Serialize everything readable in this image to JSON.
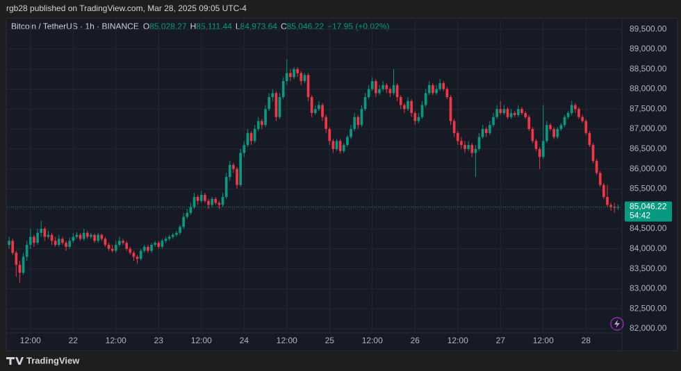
{
  "chart_data": {
    "type": "candlestick",
    "published": "rgb28 published on TradingView.com, Mar 28, 2025 09:05 UTC-4",
    "title": "Bitcoin / TetherUS · 1h · BINANCE",
    "legend": [
      {
        "key": "O",
        "value": "85,028.27"
      },
      {
        "key": "H",
        "value": "85,111.44"
      },
      {
        "key": "L",
        "value": "84,973.64"
      },
      {
        "key": "C",
        "value": "85,046.22"
      }
    ],
    "change": "+17.95 (+0.02%)",
    "last_price_label": "85,046.22",
    "countdown": "54:42",
    "brand": "TradingView",
    "up_color": "#089981",
    "down_color": "#f23645",
    "grid": true,
    "xlim": [
      -0.6,
      172.1
    ],
    "ylim": [
      81895,
      89745
    ],
    "xticks": [
      {
        "value": 6,
        "label": "12:00"
      },
      {
        "value": 18,
        "label": "22"
      },
      {
        "value": 30,
        "label": "12:00"
      },
      {
        "value": 42,
        "label": "23"
      },
      {
        "value": 54,
        "label": "12:00"
      },
      {
        "value": 66,
        "label": "24"
      },
      {
        "value": 78,
        "label": "12:00"
      },
      {
        "value": 90,
        "label": "25"
      },
      {
        "value": 102,
        "label": "12:00"
      },
      {
        "value": 114,
        "label": "26"
      },
      {
        "value": 126,
        "label": "12:00"
      },
      {
        "value": 138,
        "label": "27"
      },
      {
        "value": 150,
        "label": "12:00"
      },
      {
        "value": 162,
        "label": "28"
      }
    ],
    "yticks": [
      {
        "value": 82000,
        "label": "82,000.00"
      },
      {
        "value": 82500,
        "label": "82,500.00"
      },
      {
        "value": 83000,
        "label": "83,000.00"
      },
      {
        "value": 83500,
        "label": "83,500.00"
      },
      {
        "value": 84000,
        "label": "84,000.00"
      },
      {
        "value": 84500,
        "label": "84,500.00"
      },
      {
        "value": 85000,
        "label": "85,000.00"
      },
      {
        "value": 85500,
        "label": "85,500.00"
      },
      {
        "value": 86000,
        "label": "86,000.00"
      },
      {
        "value": 86500,
        "label": "86,500.00"
      },
      {
        "value": 87000,
        "label": "87,000.00"
      },
      {
        "value": 87500,
        "label": "87,500.00"
      },
      {
        "value": 88000,
        "label": "88,000.00"
      },
      {
        "value": 88500,
        "label": "88,500.00"
      },
      {
        "value": 89000,
        "label": "89,000.00"
      },
      {
        "value": 89500,
        "label": "89,500.00"
      }
    ],
    "ohlc": [
      [
        84100,
        84300,
        84000,
        84200
      ],
      [
        84200,
        84250,
        83850,
        83900
      ],
      [
        83900,
        83950,
        83300,
        83600
      ],
      [
        83600,
        83700,
        83150,
        83400
      ],
      [
        83400,
        83900,
        83350,
        83800
      ],
      [
        83800,
        84200,
        83700,
        84100
      ],
      [
        84100,
        84500,
        84000,
        84300
      ],
      [
        84300,
        84350,
        84050,
        84150
      ],
      [
        84150,
        84500,
        84100,
        84400
      ],
      [
        84400,
        84700,
        84300,
        84500
      ],
      [
        84500,
        84550,
        84200,
        84300
      ],
      [
        84300,
        84450,
        84250,
        84350
      ],
      [
        84350,
        84400,
        84100,
        84200
      ],
      [
        84200,
        84300,
        84050,
        84100
      ],
      [
        84100,
        84350,
        84050,
        84250
      ],
      [
        84250,
        84300,
        84100,
        84150
      ],
      [
        84150,
        84200,
        83950,
        84050
      ],
      [
        84050,
        84280,
        84000,
        84200
      ],
      [
        84200,
        84400,
        84150,
        84300
      ],
      [
        84300,
        84420,
        84250,
        84350
      ],
      [
        84350,
        84400,
        84200,
        84250
      ],
      [
        84250,
        84500,
        84200,
        84400
      ],
      [
        84400,
        84450,
        84250,
        84300
      ],
      [
        84300,
        84400,
        84250,
        84350
      ],
      [
        84350,
        84380,
        84150,
        84200
      ],
      [
        84200,
        84400,
        84150,
        84350
      ],
      [
        84350,
        84380,
        84200,
        84250
      ],
      [
        84250,
        84300,
        84050,
        84100
      ],
      [
        84100,
        84150,
        83950,
        84000
      ],
      [
        84000,
        84100,
        83900,
        83950
      ],
      [
        83950,
        84200,
        83900,
        84100
      ],
      [
        84100,
        84300,
        84050,
        84200
      ],
      [
        84200,
        84250,
        84100,
        84150
      ],
      [
        84150,
        84200,
        83950,
        84000
      ],
      [
        84000,
        84050,
        83850,
        83900
      ],
      [
        83900,
        83950,
        83700,
        83800
      ],
      [
        83800,
        83850,
        83620,
        83750
      ],
      [
        83750,
        84000,
        83700,
        83950
      ],
      [
        83950,
        84100,
        83900,
        84050
      ],
      [
        84050,
        84100,
        83900,
        83950
      ],
      [
        83950,
        84150,
        83900,
        84100
      ],
      [
        84100,
        84200,
        84050,
        84150
      ],
      [
        84150,
        84200,
        84000,
        84050
      ],
      [
        84050,
        84250,
        84000,
        84200
      ],
      [
        84200,
        84300,
        84150,
        84250
      ],
      [
        84250,
        84350,
        84200,
        84300
      ],
      [
        84300,
        84400,
        84250,
        84350
      ],
      [
        84350,
        84450,
        84300,
        84400
      ],
      [
        84400,
        84600,
        84350,
        84550
      ],
      [
        84550,
        84900,
        84500,
        84800
      ],
      [
        84800,
        85000,
        84750,
        84900
      ],
      [
        84900,
        85150,
        84850,
        85050
      ],
      [
        85050,
        85400,
        85000,
        85300
      ],
      [
        85300,
        85350,
        85100,
        85200
      ],
      [
        85200,
        85450,
        85150,
        85350
      ],
      [
        85350,
        85400,
        85150,
        85200
      ],
      [
        85200,
        85250,
        85000,
        85100
      ],
      [
        85100,
        85300,
        85050,
        85250
      ],
      [
        85250,
        85300,
        85100,
        85150
      ],
      [
        85150,
        85200,
        85000,
        85100
      ],
      [
        85100,
        85400,
        85050,
        85300
      ],
      [
        85300,
        85900,
        85250,
        85800
      ],
      [
        85800,
        86200,
        85700,
        86100
      ],
      [
        86100,
        86150,
        85900,
        86000
      ],
      [
        86000,
        86050,
        85500,
        85600
      ],
      [
        85600,
        86500,
        85550,
        86400
      ],
      [
        86400,
        86700,
        86300,
        86600
      ],
      [
        86600,
        87000,
        86550,
        86900
      ],
      [
        86900,
        86950,
        86600,
        86700
      ],
      [
        86700,
        87100,
        86650,
        87000
      ],
      [
        87000,
        87300,
        86950,
        87200
      ],
      [
        87200,
        87250,
        87000,
        87100
      ],
      [
        87100,
        87600,
        87050,
        87500
      ],
      [
        87500,
        87900,
        87450,
        87800
      ],
      [
        87800,
        88000,
        87700,
        87900
      ],
      [
        87900,
        87950,
        87200,
        87300
      ],
      [
        87300,
        87900,
        87250,
        87800
      ],
      [
        87800,
        88300,
        87750,
        88200
      ],
      [
        88200,
        88750,
        88100,
        88400
      ],
      [
        88400,
        88500,
        88200,
        88300
      ],
      [
        88300,
        88550,
        88250,
        88500
      ],
      [
        88500,
        88550,
        88300,
        88400
      ],
      [
        88400,
        88450,
        88100,
        88200
      ],
      [
        88200,
        88400,
        88150,
        88350
      ],
      [
        88350,
        88400,
        87700,
        87800
      ],
      [
        87800,
        87850,
        87300,
        87400
      ],
      [
        87400,
        87600,
        87350,
        87500
      ],
      [
        87500,
        87700,
        87450,
        87600
      ],
      [
        87600,
        87650,
        87200,
        87300
      ],
      [
        87300,
        87350,
        86900,
        87000
      ],
      [
        87000,
        87050,
        86600,
        86700
      ],
      [
        86700,
        86750,
        86400,
        86500
      ],
      [
        86500,
        86750,
        86450,
        86700
      ],
      [
        86700,
        86750,
        86380,
        86450
      ],
      [
        86450,
        86650,
        86400,
        86600
      ],
      [
        86600,
        86850,
        86550,
        86800
      ],
      [
        86800,
        87100,
        86750,
        87000
      ],
      [
        87000,
        87400,
        86950,
        87300
      ],
      [
        87300,
        87350,
        87000,
        87100
      ],
      [
        87100,
        87600,
        87050,
        87500
      ],
      [
        87500,
        87900,
        87450,
        87800
      ],
      [
        87800,
        88100,
        87750,
        88000
      ],
      [
        88000,
        88300,
        87950,
        88200
      ],
      [
        88200,
        88250,
        87800,
        87900
      ],
      [
        87900,
        88100,
        87850,
        88000
      ],
      [
        88000,
        88200,
        87950,
        88100
      ],
      [
        88100,
        88150,
        87900,
        88000
      ],
      [
        88000,
        88050,
        87800,
        87900
      ],
      [
        87900,
        88500,
        87850,
        88100
      ],
      [
        88100,
        88150,
        87700,
        87800
      ],
      [
        87800,
        87850,
        87500,
        87600
      ],
      [
        87600,
        87650,
        87400,
        87500
      ],
      [
        87500,
        87800,
        87450,
        87700
      ],
      [
        87700,
        87750,
        87300,
        87400
      ],
      [
        87400,
        87450,
        87100,
        87200
      ],
      [
        87200,
        87400,
        87150,
        87300
      ],
      [
        87300,
        87700,
        87250,
        87600
      ],
      [
        87600,
        88000,
        87550,
        87900
      ],
      [
        87900,
        88200,
        87850,
        88100
      ],
      [
        88100,
        88150,
        87850,
        87900
      ],
      [
        87900,
        88100,
        87850,
        88000
      ],
      [
        88000,
        88250,
        87950,
        88150
      ],
      [
        88150,
        88200,
        87950,
        88000
      ],
      [
        88000,
        88050,
        87750,
        87800
      ],
      [
        87800,
        87850,
        87100,
        87200
      ],
      [
        87200,
        87250,
        86800,
        86900
      ],
      [
        86900,
        86950,
        86600,
        86700
      ],
      [
        86700,
        86800,
        86500,
        86600
      ],
      [
        86600,
        86700,
        86400,
        86500
      ],
      [
        86500,
        86700,
        86450,
        86600
      ],
      [
        86600,
        86650,
        86300,
        86400
      ],
      [
        86400,
        86600,
        85800,
        86500
      ],
      [
        86500,
        86900,
        86450,
        86800
      ],
      [
        86800,
        87100,
        86750,
        87000
      ],
      [
        87000,
        87050,
        86800,
        86900
      ],
      [
        86900,
        87200,
        86850,
        87100
      ],
      [
        87100,
        87400,
        87050,
        87300
      ],
      [
        87300,
        87600,
        87250,
        87500
      ],
      [
        87500,
        87700,
        87350,
        87400
      ],
      [
        87400,
        87600,
        87350,
        87500
      ],
      [
        87500,
        87550,
        87250,
        87300
      ],
      [
        87300,
        87500,
        87250,
        87400
      ],
      [
        87400,
        87450,
        87300,
        87350
      ],
      [
        87350,
        87600,
        87300,
        87500
      ],
      [
        87500,
        87550,
        87350,
        87400
      ],
      [
        87400,
        87450,
        87250,
        87300
      ],
      [
        87300,
        87350,
        86950,
        87000
      ],
      [
        87000,
        87050,
        86650,
        86700
      ],
      [
        86700,
        86750,
        86450,
        86500
      ],
      [
        86500,
        86550,
        86000,
        86300
      ],
      [
        86300,
        87600,
        86250,
        86700
      ],
      [
        86700,
        87200,
        86650,
        87100
      ],
      [
        87100,
        87150,
        86950,
        87000
      ],
      [
        87000,
        87050,
        86750,
        86800
      ],
      [
        86800,
        87050,
        86750,
        87000
      ],
      [
        87000,
        87150,
        86950,
        87100
      ],
      [
        87100,
        87350,
        87050,
        87300
      ],
      [
        87300,
        87450,
        87250,
        87400
      ],
      [
        87400,
        87700,
        87350,
        87600
      ],
      [
        87600,
        87650,
        87400,
        87500
      ],
      [
        87500,
        87550,
        87250,
        87300
      ],
      [
        87300,
        87350,
        87150,
        87200
      ],
      [
        87200,
        87250,
        86850,
        86900
      ],
      [
        86900,
        86950,
        86550,
        86600
      ],
      [
        86600,
        86650,
        86150,
        86200
      ],
      [
        86200,
        86250,
        85850,
        85900
      ],
      [
        85900,
        85950,
        85550,
        85600
      ],
      [
        85600,
        85650,
        85250,
        85300
      ],
      [
        85300,
        85600,
        85050,
        85100
      ],
      [
        85100,
        85150,
        84950,
        85050
      ],
      [
        85050,
        85150,
        84900,
        85028.27
      ],
      [
        85028.27,
        85111.44,
        84973.64,
        85046.22
      ]
    ]
  }
}
